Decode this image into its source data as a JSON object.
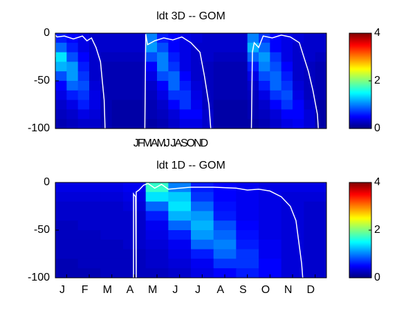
{
  "chart_data": [
    {
      "type": "heatmap",
      "title": "ldt 3D   -- GOM",
      "xtick_text": "JFMAMJ JASOND",
      "xlim": [
        0,
        3
      ],
      "ylim": [
        -100,
        0
      ],
      "yticks": [
        0,
        -50,
        -100
      ],
      "values": [
        [
          0.6,
          0.5,
          0.4,
          0.3,
          0.3,
          0.3,
          0.3,
          0.3,
          1.0,
          0.6,
          0.5,
          0.4,
          0.35,
          0.3,
          0.3,
          0.3,
          0.3,
          1.0,
          0.7,
          0.5,
          0.4,
          0.35,
          0.3,
          0.3
        ],
        [
          0.9,
          0.6,
          0.4,
          0.3,
          0.3,
          0.3,
          0.3,
          0.3,
          1.1,
          0.8,
          0.5,
          0.4,
          0.3,
          0.3,
          0.3,
          0.3,
          0.3,
          1.2,
          0.9,
          0.5,
          0.4,
          0.3,
          0.3,
          0.3
        ],
        [
          1.4,
          0.8,
          0.5,
          0.3,
          0.25,
          0.25,
          0.25,
          0.25,
          0.8,
          1.0,
          0.6,
          0.4,
          0.3,
          0.3,
          0.25,
          0.25,
          0.25,
          0.9,
          1.1,
          0.7,
          0.4,
          0.3,
          0.3,
          0.25
        ],
        [
          1.2,
          1.1,
          0.6,
          0.3,
          0.2,
          0.2,
          0.2,
          0.2,
          0.5,
          1.0,
          0.7,
          0.4,
          0.3,
          0.25,
          0.2,
          0.2,
          0.2,
          0.6,
          1.0,
          0.8,
          0.5,
          0.3,
          0.25,
          0.2
        ],
        [
          0.8,
          1.1,
          0.7,
          0.3,
          0.2,
          0.2,
          0.2,
          0.2,
          0.4,
          0.8,
          0.9,
          0.5,
          0.3,
          0.25,
          0.2,
          0.2,
          0.2,
          0.4,
          0.8,
          0.9,
          0.6,
          0.3,
          0.25,
          0.2
        ],
        [
          0.5,
          0.9,
          0.8,
          0.35,
          0.2,
          0.2,
          0.2,
          0.2,
          0.3,
          0.5,
          0.9,
          0.6,
          0.35,
          0.25,
          0.2,
          0.2,
          0.2,
          0.3,
          0.6,
          0.9,
          0.7,
          0.35,
          0.25,
          0.2
        ],
        [
          0.4,
          0.6,
          0.7,
          0.4,
          0.2,
          0.2,
          0.2,
          0.2,
          0.25,
          0.4,
          0.7,
          0.7,
          0.4,
          0.25,
          0.2,
          0.2,
          0.2,
          0.25,
          0.4,
          0.7,
          0.8,
          0.4,
          0.25,
          0.2
        ],
        [
          0.3,
          0.4,
          0.6,
          0.4,
          0.2,
          0.15,
          0.15,
          0.15,
          0.2,
          0.3,
          0.5,
          0.7,
          0.45,
          0.25,
          0.15,
          0.15,
          0.15,
          0.2,
          0.3,
          0.5,
          0.7,
          0.5,
          0.3,
          0.15
        ],
        [
          0.25,
          0.3,
          0.4,
          0.35,
          0.2,
          0.15,
          0.15,
          0.15,
          0.2,
          0.25,
          0.35,
          0.5,
          0.5,
          0.3,
          0.15,
          0.15,
          0.15,
          0.2,
          0.25,
          0.35,
          0.5,
          0.5,
          0.35,
          0.15
        ],
        [
          0.2,
          0.25,
          0.3,
          0.3,
          0.2,
          0.15,
          0.15,
          0.15,
          0.15,
          0.2,
          0.3,
          0.4,
          0.4,
          0.3,
          0.15,
          0.15,
          0.15,
          0.15,
          0.2,
          0.3,
          0.4,
          0.45,
          0.35,
          0.15
        ]
      ],
      "line": {
        "color": "#ffffff",
        "x": [
          0.0,
          0.0,
          0.02,
          0.1,
          0.2,
          0.3,
          0.35,
          0.4,
          0.45,
          0.5,
          0.52,
          0.54,
          0.55,
          null,
          0.99,
          1.0,
          1.02,
          1.1,
          1.2,
          1.3,
          1.4,
          1.5,
          1.6,
          1.65,
          1.7,
          1.72,
          null,
          2.17,
          2.18,
          2.2,
          2.25,
          2.3,
          2.4,
          2.5,
          2.6,
          2.7,
          2.75,
          2.8,
          2.85,
          2.9,
          2.91
        ],
        "y": [
          -25,
          -2,
          -4,
          -3,
          -6,
          -3,
          -8,
          -5,
          -15,
          -30,
          -50,
          -70,
          -100,
          null,
          -100,
          -1,
          -12,
          -8,
          -5,
          -7,
          -4,
          -10,
          -20,
          -45,
          -75,
          -100,
          null,
          -100,
          -20,
          -10,
          -15,
          -3,
          -5,
          -2,
          -4,
          -10,
          -25,
          -40,
          -60,
          -85,
          -100
        ]
      },
      "colorbar": {
        "colormap": "jet",
        "clim": [
          0,
          4
        ],
        "ticks": [
          0,
          2,
          4
        ]
      }
    },
    {
      "type": "heatmap",
      "title": "ldt 1D   -- GOM",
      "categories": [
        "J",
        "F",
        "M",
        "A",
        "M",
        "J",
        "J",
        "A",
        "S",
        "O",
        "N",
        "D"
      ],
      "xlim": [
        0,
        12
      ],
      "ylim": [
        -100,
        0
      ],
      "yticks": [
        0,
        -50,
        -100
      ],
      "values": [
        [
          0.4,
          0.4,
          0.4,
          0.45,
          1.7,
          1.0,
          0.6,
          0.5,
          0.45,
          0.4,
          0.4,
          0.4
        ],
        [
          0.35,
          0.35,
          0.35,
          0.4,
          1.4,
          1.3,
          0.7,
          0.5,
          0.45,
          0.4,
          0.35,
          0.35
        ],
        [
          0.3,
          0.3,
          0.3,
          0.35,
          0.9,
          1.4,
          0.9,
          0.55,
          0.45,
          0.4,
          0.35,
          0.3
        ],
        [
          0.3,
          0.3,
          0.3,
          0.3,
          0.6,
          1.2,
          1.1,
          0.6,
          0.45,
          0.4,
          0.35,
          0.3
        ],
        [
          0.25,
          0.3,
          0.3,
          0.3,
          0.45,
          0.9,
          1.2,
          0.8,
          0.5,
          0.4,
          0.35,
          0.3
        ],
        [
          0.25,
          0.25,
          0.3,
          0.3,
          0.4,
          0.6,
          1.1,
          0.9,
          0.55,
          0.4,
          0.35,
          0.3
        ],
        [
          0.25,
          0.25,
          0.25,
          0.3,
          0.35,
          0.45,
          0.9,
          1.0,
          0.6,
          0.45,
          0.35,
          0.3
        ],
        [
          0.25,
          0.25,
          0.25,
          0.25,
          0.3,
          0.4,
          0.6,
          0.9,
          0.7,
          0.45,
          0.35,
          0.3
        ],
        [
          0.2,
          0.25,
          0.25,
          0.25,
          0.3,
          0.35,
          0.45,
          0.7,
          0.7,
          0.5,
          0.35,
          0.3
        ],
        [
          0.2,
          0.2,
          0.25,
          0.25,
          0.25,
          0.3,
          0.4,
          0.5,
          0.6,
          0.5,
          0.35,
          0.3
        ]
      ],
      "line": {
        "color": "#ffffff",
        "x": [
          3.46,
          3.46,
          3.55,
          3.58,
          3.58,
          3.7,
          3.9,
          4.1,
          4.4,
          4.7,
          5.0,
          6,
          7,
          8,
          8.5,
          9,
          9.5,
          10,
          10.4,
          10.65,
          10.9,
          10.95
        ],
        "y": [
          -100,
          -12,
          -15,
          -100,
          -10,
          -8,
          -3,
          -1,
          -6,
          -2,
          -7,
          -5,
          -5,
          -6,
          -8,
          -7,
          -9,
          -15,
          -25,
          -40,
          -85,
          -100
        ]
      },
      "colorbar": {
        "colormap": "jet",
        "clim": [
          0,
          4
        ],
        "ticks": [
          0,
          2,
          4
        ]
      }
    }
  ]
}
